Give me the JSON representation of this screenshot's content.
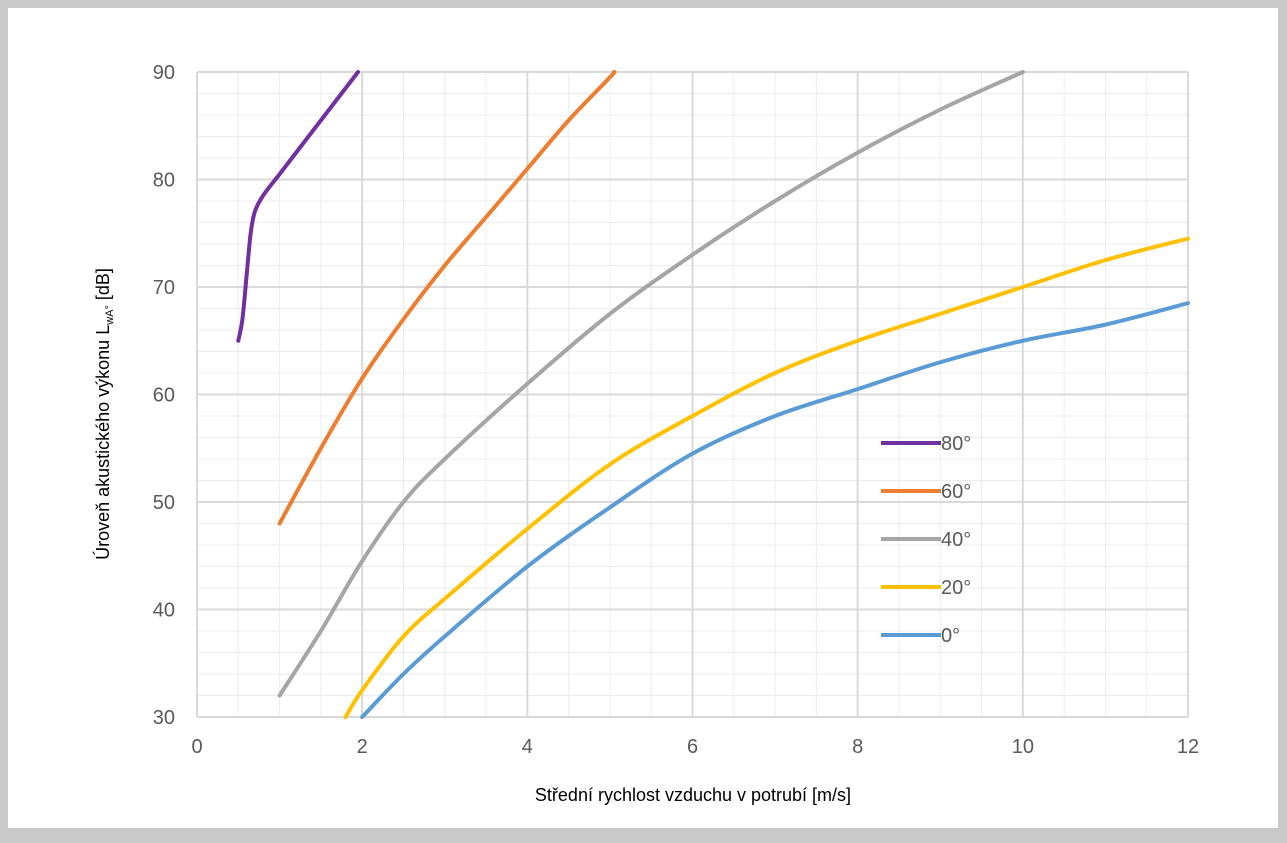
{
  "chart_data": {
    "type": "line",
    "xlabel": "Střední rychlost vzduchu v potrubí [m/s]",
    "ylabel": "Úroveň akustického výkonu L",
    "ylabel_sub": "wA°",
    "ylabel_unit": " [dB]",
    "xlim": [
      0,
      12
    ],
    "ylim": [
      30,
      90
    ],
    "x_ticks": [
      "0",
      "2",
      "4",
      "6",
      "8",
      "10",
      "12"
    ],
    "y_ticks": [
      "30",
      "40",
      "50",
      "60",
      "70",
      "80",
      "90"
    ],
    "grid": true,
    "legend_position": "right-center",
    "series": [
      {
        "name": "80°",
        "color": "#7030a0",
        "x": [
          0.5,
          0.55,
          0.6,
          0.65,
          0.7,
          0.8,
          1.0,
          1.2,
          1.5,
          1.8,
          1.95
        ],
        "y": [
          65,
          67,
          71,
          75,
          77,
          78.5,
          80.5,
          82.5,
          85.5,
          88.5,
          90
        ]
      },
      {
        "name": "60°",
        "color": "#ed7d31",
        "x": [
          1.0,
          1.5,
          2.0,
          2.5,
          3.0,
          3.5,
          4.0,
          4.5,
          5.0,
          5.05
        ],
        "y": [
          48,
          55,
          61.5,
          67,
          72,
          76.5,
          81,
          85.5,
          89.5,
          90
        ]
      },
      {
        "name": "40°",
        "color": "#a5a5a5",
        "x": [
          1.0,
          1.5,
          2.0,
          2.5,
          3.0,
          4.0,
          5.0,
          6.0,
          7.0,
          8.0,
          9.0,
          10.0
        ],
        "y": [
          32,
          38,
          44.5,
          50,
          54,
          61,
          67.5,
          73,
          78,
          82.5,
          86.5,
          90
        ]
      },
      {
        "name": "20°",
        "color": "#ffc000",
        "x": [
          1.8,
          2.0,
          2.5,
          3.0,
          4.0,
          5.0,
          6.0,
          7.0,
          8.0,
          9.0,
          10.0,
          11.0,
          12.0
        ],
        "y": [
          30,
          32.5,
          37.5,
          41,
          47.5,
          53.5,
          58,
          62,
          65,
          67.5,
          70,
          72.5,
          74.5
        ]
      },
      {
        "name": "0°",
        "color": "#5b9bd5",
        "x": [
          2.0,
          2.5,
          3.0,
          4.0,
          5.0,
          6.0,
          7.0,
          8.0,
          9.0,
          10.0,
          11.0,
          12.0
        ],
        "y": [
          30,
          34,
          37.5,
          44,
          49.5,
          54.5,
          58,
          60.5,
          63,
          65,
          66.5,
          68.5
        ]
      }
    ]
  }
}
